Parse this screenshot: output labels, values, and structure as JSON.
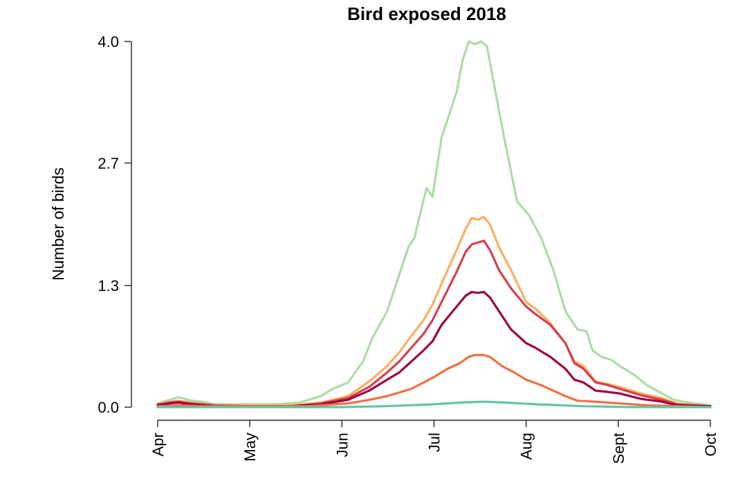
{
  "chart_data": {
    "type": "line",
    "title": "Bird exposed 2018",
    "xlabel": "",
    "ylabel": "Number of birds",
    "x_ticks": [
      "Apr",
      "May",
      "Jun",
      "Jul",
      "Aug",
      "Sept",
      "Oct"
    ],
    "y_ticks": [
      "0.0",
      "1.3",
      "2.7",
      "4.0"
    ],
    "y_tick_values": [
      0,
      1.33,
      2.67,
      4.0
    ],
    "ylim": [
      0,
      4.0
    ],
    "x_domain": [
      "2018-04-01",
      "2018-10-01"
    ],
    "grid": false,
    "legend": "none",
    "series": [
      {
        "color": "#abdda4",
        "points": [
          [
            "2018-04-01",
            0.04
          ],
          [
            "2018-04-05",
            0.08
          ],
          [
            "2018-04-08",
            0.11
          ],
          [
            "2018-04-12",
            0.07
          ],
          [
            "2018-04-16",
            0.06
          ],
          [
            "2018-04-20",
            0.03
          ],
          [
            "2018-05-01",
            0.03
          ],
          [
            "2018-05-10",
            0.03
          ],
          [
            "2018-05-18",
            0.05
          ],
          [
            "2018-05-25",
            0.12
          ],
          [
            "2018-05-29",
            0.2
          ],
          [
            "2018-06-03",
            0.27
          ],
          [
            "2018-06-08",
            0.5
          ],
          [
            "2018-06-11",
            0.75
          ],
          [
            "2018-06-16",
            1.05
          ],
          [
            "2018-06-19",
            1.35
          ],
          [
            "2018-06-23",
            1.75
          ],
          [
            "2018-06-25",
            1.85
          ],
          [
            "2018-06-29",
            2.4
          ],
          [
            "2018-07-01",
            2.3
          ],
          [
            "2018-07-04",
            2.95
          ],
          [
            "2018-07-09",
            3.45
          ],
          [
            "2018-07-11",
            3.8
          ],
          [
            "2018-07-13",
            4.0
          ],
          [
            "2018-07-15",
            3.97
          ],
          [
            "2018-07-17",
            4.0
          ],
          [
            "2018-07-19",
            3.95
          ],
          [
            "2018-07-21",
            3.6
          ],
          [
            "2018-07-25",
            2.9
          ],
          [
            "2018-07-29",
            2.25
          ],
          [
            "2018-08-02",
            2.1
          ],
          [
            "2018-08-06",
            1.85
          ],
          [
            "2018-08-10",
            1.5
          ],
          [
            "2018-08-14",
            1.05
          ],
          [
            "2018-08-18",
            0.85
          ],
          [
            "2018-08-21",
            0.83
          ],
          [
            "2018-08-23",
            0.62
          ],
          [
            "2018-08-26",
            0.55
          ],
          [
            "2018-08-29",
            0.52
          ],
          [
            "2018-09-01",
            0.45
          ],
          [
            "2018-09-06",
            0.35
          ],
          [
            "2018-09-10",
            0.24
          ],
          [
            "2018-09-15",
            0.15
          ],
          [
            "2018-09-19",
            0.08
          ],
          [
            "2018-09-22",
            0.06
          ],
          [
            "2018-09-26",
            0.04
          ],
          [
            "2018-10-01",
            0.02
          ]
        ]
      },
      {
        "color": "#fdae61",
        "points": [
          [
            "2018-04-01",
            0.03
          ],
          [
            "2018-04-05",
            0.06
          ],
          [
            "2018-04-08",
            0.07
          ],
          [
            "2018-04-12",
            0.05
          ],
          [
            "2018-04-16",
            0.04
          ],
          [
            "2018-04-20",
            0.02
          ],
          [
            "2018-05-01",
            0.02
          ],
          [
            "2018-05-15",
            0.02
          ],
          [
            "2018-05-25",
            0.05
          ],
          [
            "2018-06-03",
            0.12
          ],
          [
            "2018-06-10",
            0.28
          ],
          [
            "2018-06-16",
            0.45
          ],
          [
            "2018-06-20",
            0.6
          ],
          [
            "2018-06-24",
            0.78
          ],
          [
            "2018-06-28",
            0.95
          ],
          [
            "2018-07-01",
            1.12
          ],
          [
            "2018-07-04",
            1.35
          ],
          [
            "2018-07-09",
            1.72
          ],
          [
            "2018-07-12",
            1.95
          ],
          [
            "2018-07-14",
            2.07
          ],
          [
            "2018-07-16",
            2.05
          ],
          [
            "2018-07-18",
            2.08
          ],
          [
            "2018-07-20",
            2.0
          ],
          [
            "2018-07-23",
            1.75
          ],
          [
            "2018-07-27",
            1.5
          ],
          [
            "2018-08-01",
            1.15
          ],
          [
            "2018-08-04",
            1.08
          ],
          [
            "2018-08-09",
            0.92
          ],
          [
            "2018-08-14",
            0.7
          ],
          [
            "2018-08-17",
            0.5
          ],
          [
            "2018-08-20",
            0.45
          ],
          [
            "2018-08-24",
            0.28
          ],
          [
            "2018-08-27",
            0.26
          ],
          [
            "2018-09-01",
            0.22
          ],
          [
            "2018-09-08",
            0.15
          ],
          [
            "2018-09-15",
            0.1
          ],
          [
            "2018-09-20",
            0.04
          ],
          [
            "2018-10-01",
            0.01
          ]
        ]
      },
      {
        "color": "#d53e4f",
        "points": [
          [
            "2018-04-01",
            0.03
          ],
          [
            "2018-04-05",
            0.05
          ],
          [
            "2018-04-08",
            0.06
          ],
          [
            "2018-04-12",
            0.04
          ],
          [
            "2018-04-16",
            0.03
          ],
          [
            "2018-04-20",
            0.02
          ],
          [
            "2018-05-01",
            0.01
          ],
          [
            "2018-05-15",
            0.01
          ],
          [
            "2018-05-25",
            0.04
          ],
          [
            "2018-06-03",
            0.1
          ],
          [
            "2018-06-10",
            0.22
          ],
          [
            "2018-06-16",
            0.38
          ],
          [
            "2018-06-20",
            0.5
          ],
          [
            "2018-06-24",
            0.65
          ],
          [
            "2018-06-28",
            0.8
          ],
          [
            "2018-07-01",
            0.95
          ],
          [
            "2018-07-04",
            1.15
          ],
          [
            "2018-07-09",
            1.48
          ],
          [
            "2018-07-12",
            1.7
          ],
          [
            "2018-07-14",
            1.78
          ],
          [
            "2018-07-16",
            1.8
          ],
          [
            "2018-07-18",
            1.82
          ],
          [
            "2018-07-20",
            1.72
          ],
          [
            "2018-07-23",
            1.5
          ],
          [
            "2018-07-27",
            1.3
          ],
          [
            "2018-08-01",
            1.1
          ],
          [
            "2018-08-04",
            1.02
          ],
          [
            "2018-08-09",
            0.9
          ],
          [
            "2018-08-14",
            0.7
          ],
          [
            "2018-08-17",
            0.48
          ],
          [
            "2018-08-20",
            0.42
          ],
          [
            "2018-08-24",
            0.27
          ],
          [
            "2018-08-27",
            0.25
          ],
          [
            "2018-09-01",
            0.2
          ],
          [
            "2018-09-08",
            0.13
          ],
          [
            "2018-09-15",
            0.08
          ],
          [
            "2018-09-20",
            0.03
          ],
          [
            "2018-10-01",
            0.01
          ]
        ]
      },
      {
        "color": "#9e0142",
        "points": [
          [
            "2018-04-01",
            0.02
          ],
          [
            "2018-04-05",
            0.04
          ],
          [
            "2018-04-08",
            0.05
          ],
          [
            "2018-04-12",
            0.03
          ],
          [
            "2018-04-16",
            0.02
          ],
          [
            "2018-04-20",
            0.01
          ],
          [
            "2018-05-01",
            0.01
          ],
          [
            "2018-05-15",
            0.01
          ],
          [
            "2018-05-25",
            0.03
          ],
          [
            "2018-06-03",
            0.08
          ],
          [
            "2018-06-10",
            0.18
          ],
          [
            "2018-06-16",
            0.3
          ],
          [
            "2018-06-20",
            0.38
          ],
          [
            "2018-06-24",
            0.5
          ],
          [
            "2018-06-28",
            0.62
          ],
          [
            "2018-07-01",
            0.72
          ],
          [
            "2018-07-04",
            0.9
          ],
          [
            "2018-07-09",
            1.1
          ],
          [
            "2018-07-12",
            1.22
          ],
          [
            "2018-07-14",
            1.26
          ],
          [
            "2018-07-16",
            1.25
          ],
          [
            "2018-07-18",
            1.26
          ],
          [
            "2018-07-20",
            1.2
          ],
          [
            "2018-07-23",
            1.05
          ],
          [
            "2018-07-27",
            0.85
          ],
          [
            "2018-08-01",
            0.7
          ],
          [
            "2018-08-04",
            0.65
          ],
          [
            "2018-08-09",
            0.55
          ],
          [
            "2018-08-14",
            0.42
          ],
          [
            "2018-08-17",
            0.3
          ],
          [
            "2018-08-20",
            0.27
          ],
          [
            "2018-08-24",
            0.18
          ],
          [
            "2018-08-27",
            0.17
          ],
          [
            "2018-09-01",
            0.15
          ],
          [
            "2018-09-08",
            0.09
          ],
          [
            "2018-09-15",
            0.06
          ],
          [
            "2018-09-20",
            0.02
          ],
          [
            "2018-10-01",
            0.01
          ]
        ]
      },
      {
        "color": "#f46d43",
        "points": [
          [
            "2018-04-01",
            0.01
          ],
          [
            "2018-04-08",
            0.02
          ],
          [
            "2018-04-16",
            0.01
          ],
          [
            "2018-05-01",
            0.01
          ],
          [
            "2018-05-20",
            0.01
          ],
          [
            "2018-06-03",
            0.04
          ],
          [
            "2018-06-10",
            0.08
          ],
          [
            "2018-06-16",
            0.12
          ],
          [
            "2018-06-24",
            0.2
          ],
          [
            "2018-07-01",
            0.32
          ],
          [
            "2018-07-06",
            0.42
          ],
          [
            "2018-07-10",
            0.48
          ],
          [
            "2018-07-13",
            0.55
          ],
          [
            "2018-07-15",
            0.57
          ],
          [
            "2018-07-18",
            0.57
          ],
          [
            "2018-07-20",
            0.55
          ],
          [
            "2018-07-24",
            0.45
          ],
          [
            "2018-07-28",
            0.38
          ],
          [
            "2018-08-01",
            0.3
          ],
          [
            "2018-08-06",
            0.24
          ],
          [
            "2018-08-10",
            0.18
          ],
          [
            "2018-08-14",
            0.12
          ],
          [
            "2018-08-18",
            0.07
          ],
          [
            "2018-08-24",
            0.06
          ],
          [
            "2018-09-01",
            0.04
          ],
          [
            "2018-09-10",
            0.02
          ],
          [
            "2018-10-01",
            0.0
          ]
        ]
      },
      {
        "color": "#66c2a5",
        "points": [
          [
            "2018-04-01",
            0.0
          ],
          [
            "2018-05-01",
            0.0
          ],
          [
            "2018-06-01",
            0.0
          ],
          [
            "2018-06-15",
            0.01
          ],
          [
            "2018-07-01",
            0.03
          ],
          [
            "2018-07-10",
            0.05
          ],
          [
            "2018-07-18",
            0.06
          ],
          [
            "2018-07-25",
            0.05
          ],
          [
            "2018-08-05",
            0.03
          ],
          [
            "2018-08-20",
            0.01
          ],
          [
            "2018-09-05",
            0.0
          ],
          [
            "2018-10-01",
            0.0
          ]
        ]
      }
    ]
  }
}
